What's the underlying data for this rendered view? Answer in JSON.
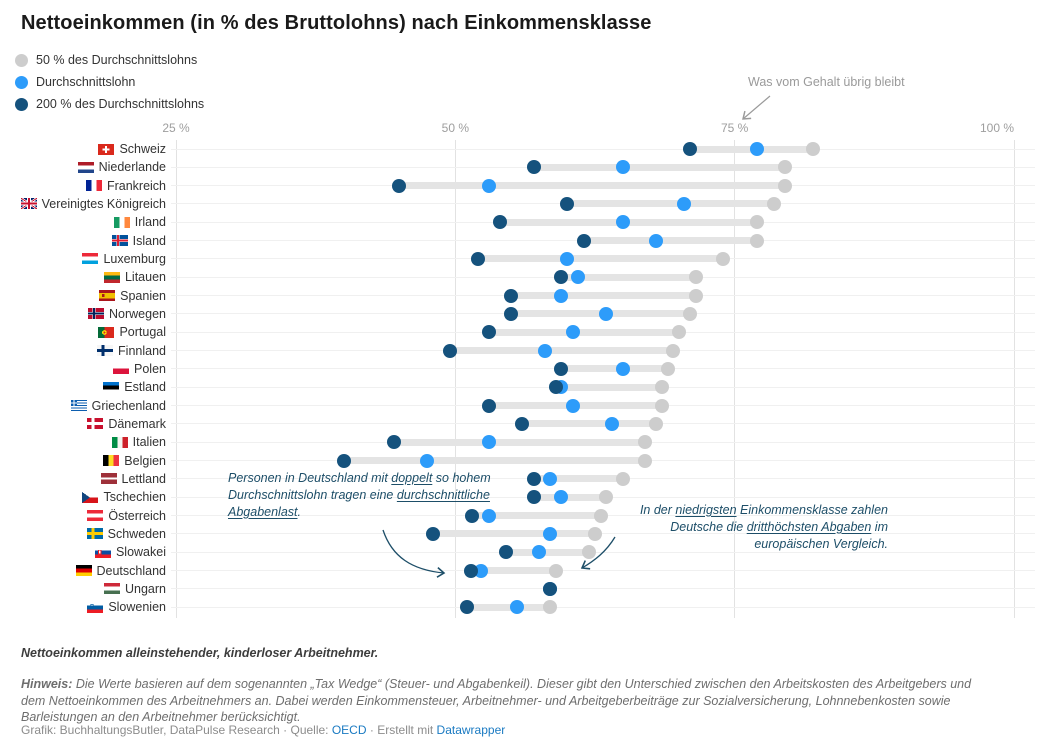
{
  "title": "Nettoeinkommen (in % des Bruttolohns) nach Einkommensklasse",
  "legend": [
    {
      "label": "50 % des Durchschnittslohns",
      "color": "#cdcdcd"
    },
    {
      "label": "Durchschnittslohn",
      "color": "#2d9cfa"
    },
    {
      "label": "200 % des Durchschnittslohns",
      "color": "#15527d"
    }
  ],
  "top_annotation": "Was vom Gehalt übrig bleibt",
  "colors": {
    "dot_50": "#cdcdcd",
    "dot_100": "#2d9cfa",
    "dot_200": "#15527d",
    "bar": "#e4e4e4",
    "annotation_text": "#1d4e68",
    "arrow_gray": "#9a9a9a",
    "link": "#1a7ac2"
  },
  "chart_data": {
    "type": "scatter",
    "subtype": "dot-range / dumbbell",
    "xlim": [
      25,
      100
    ],
    "grid": "vertical",
    "legend_position": "top-left",
    "ticks": [
      {
        "label": "25 %",
        "value": 25,
        "align": "center"
      },
      {
        "label": "50 %",
        "value": 50,
        "align": "center"
      },
      {
        "label": "75 %",
        "value": 75,
        "align": "center"
      },
      {
        "label": "100 %",
        "value": 100,
        "align": "right"
      }
    ],
    "series_legend": {
      "p50": "50 % des Durchschnittslohns",
      "p100": "Durchschnittslohn",
      "p200": "200 % des Durchschnittslohns"
    },
    "rows": [
      {
        "country": "Schweiz",
        "flag": "ch",
        "p200": 71,
        "p100": 77,
        "p50": 82
      },
      {
        "country": "Niederlande",
        "flag": "nl",
        "p200": 57,
        "p100": 65,
        "p50": 79.5
      },
      {
        "country": "Frankreich",
        "flag": "fr",
        "p200": 45,
        "p100": 53,
        "p50": 79.5
      },
      {
        "country": "Vereinigtes Königreich",
        "flag": "gb",
        "p200": 60,
        "p100": 70.5,
        "p50": 78.5
      },
      {
        "country": "Irland",
        "flag": "ie",
        "p200": 54,
        "p100": 65,
        "p50": 77
      },
      {
        "country": "Island",
        "flag": "is",
        "p200": 61.5,
        "p100": 68,
        "p50": 77
      },
      {
        "country": "Luxemburg",
        "flag": "lu",
        "p200": 52,
        "p100": 60,
        "p50": 74
      },
      {
        "country": "Litauen",
        "flag": "lt",
        "p200": 59.5,
        "p100": 61,
        "p50": 71.5
      },
      {
        "country": "Spanien",
        "flag": "es",
        "p200": 55,
        "p100": 59.5,
        "p50": 71.5
      },
      {
        "country": "Norwegen",
        "flag": "no",
        "p200": 55,
        "p100": 63.5,
        "p50": 71
      },
      {
        "country": "Portugal",
        "flag": "pt",
        "p200": 53,
        "p100": 60.5,
        "p50": 70
      },
      {
        "country": "Finnland",
        "flag": "fi",
        "p200": 49.5,
        "p100": 58,
        "p50": 69.5
      },
      {
        "country": "Polen",
        "flag": "pl",
        "p200": 59.5,
        "p100": 65,
        "p50": 69
      },
      {
        "country": "Estland",
        "flag": "ee",
        "p200": 59,
        "p100": 59.5,
        "p50": 68.5
      },
      {
        "country": "Griechenland",
        "flag": "gr",
        "p200": 53,
        "p100": 60.5,
        "p50": 68.5
      },
      {
        "country": "Dänemark",
        "flag": "dk",
        "p200": 56,
        "p100": 64,
        "p50": 68
      },
      {
        "country": "Italien",
        "flag": "it",
        "p200": 44.5,
        "p100": 53,
        "p50": 67
      },
      {
        "country": "Belgien",
        "flag": "be",
        "p200": 40,
        "p100": 47.5,
        "p50": 67
      },
      {
        "country": "Lettland",
        "flag": "lv",
        "p200": 57,
        "p100": 58.5,
        "p50": 65
      },
      {
        "country": "Tschechien",
        "flag": "cz",
        "p200": 57,
        "p100": 59.5,
        "p50": 63.5
      },
      {
        "country": "Österreich",
        "flag": "at",
        "p200": 51.5,
        "p100": 53,
        "p50": 63
      },
      {
        "country": "Schweden",
        "flag": "se",
        "p200": 48,
        "p100": 58.5,
        "p50": 62.5
      },
      {
        "country": "Slowakei",
        "flag": "sk",
        "p200": 54.5,
        "p100": 57.5,
        "p50": 62
      },
      {
        "country": "Deutschland",
        "flag": "de",
        "p200": 51.4,
        "p100": 52.3,
        "p50": 59
      },
      {
        "country": "Ungarn",
        "flag": "hu",
        "p200": 58.5,
        "p100": 58.5,
        "p50": 58.5
      },
      {
        "country": "Slowenien",
        "flag": "si",
        "p200": 51,
        "p100": 55.5,
        "p50": 58.5
      }
    ]
  },
  "annotation_left": {
    "lines": [
      [
        {
          "t": "Personen in Deutschland mit "
        },
        {
          "t": "doppelt",
          "u": true
        },
        {
          "t": " so hohem"
        }
      ],
      [
        {
          "t": "Durchschnittslohn tragen eine "
        },
        {
          "t": "durchschnittliche",
          "u": true
        }
      ],
      [
        {
          "t": "Abgabenlast",
          "u": true
        },
        {
          "t": "."
        }
      ]
    ]
  },
  "annotation_right": {
    "lines": [
      [
        {
          "t": "In der "
        },
        {
          "t": "niedrigsten",
          "u": true
        },
        {
          "t": " Einkommensklasse zahlen"
        }
      ],
      [
        {
          "t": "Deutsche die "
        },
        {
          "t": "dritthöchsten Abgaben",
          "u": true
        },
        {
          "t": " im"
        }
      ],
      [
        {
          "t": "europäischen Vergleich."
        }
      ]
    ]
  },
  "footer": {
    "note1": "Nettoeinkommen alleinstehender, kinderloser Arbeitnehmer.",
    "hinweis_label": "Hinweis:",
    "hinweis_text": " Die Werte basieren auf dem sogenannten „Tax Wedge“ (Steuer- und Abgabenkeil). Dieser gibt den Unterschied zwischen den Arbeitskosten des Arbeitgebers und dem Nettoeinkommen des Arbeitnehmers an. Dabei werden Einkommensteuer, Arbeitnehmer- und Arbeitgeberbeiträge zur Sozialversicherung, Lohnnebenkosten sowie Barleistungen an den Arbeitnehmer berücksichtigt.",
    "credit_byline": "Grafik: BuchhaltungsButler, DataPulse Research",
    "credit_sep1": " · ",
    "credit_source_label": "Quelle: ",
    "credit_source_link": "OECD",
    "credit_sep2": " · ",
    "credit_madewith": "Erstellt mit ",
    "credit_tool_link": "Datawrapper"
  }
}
